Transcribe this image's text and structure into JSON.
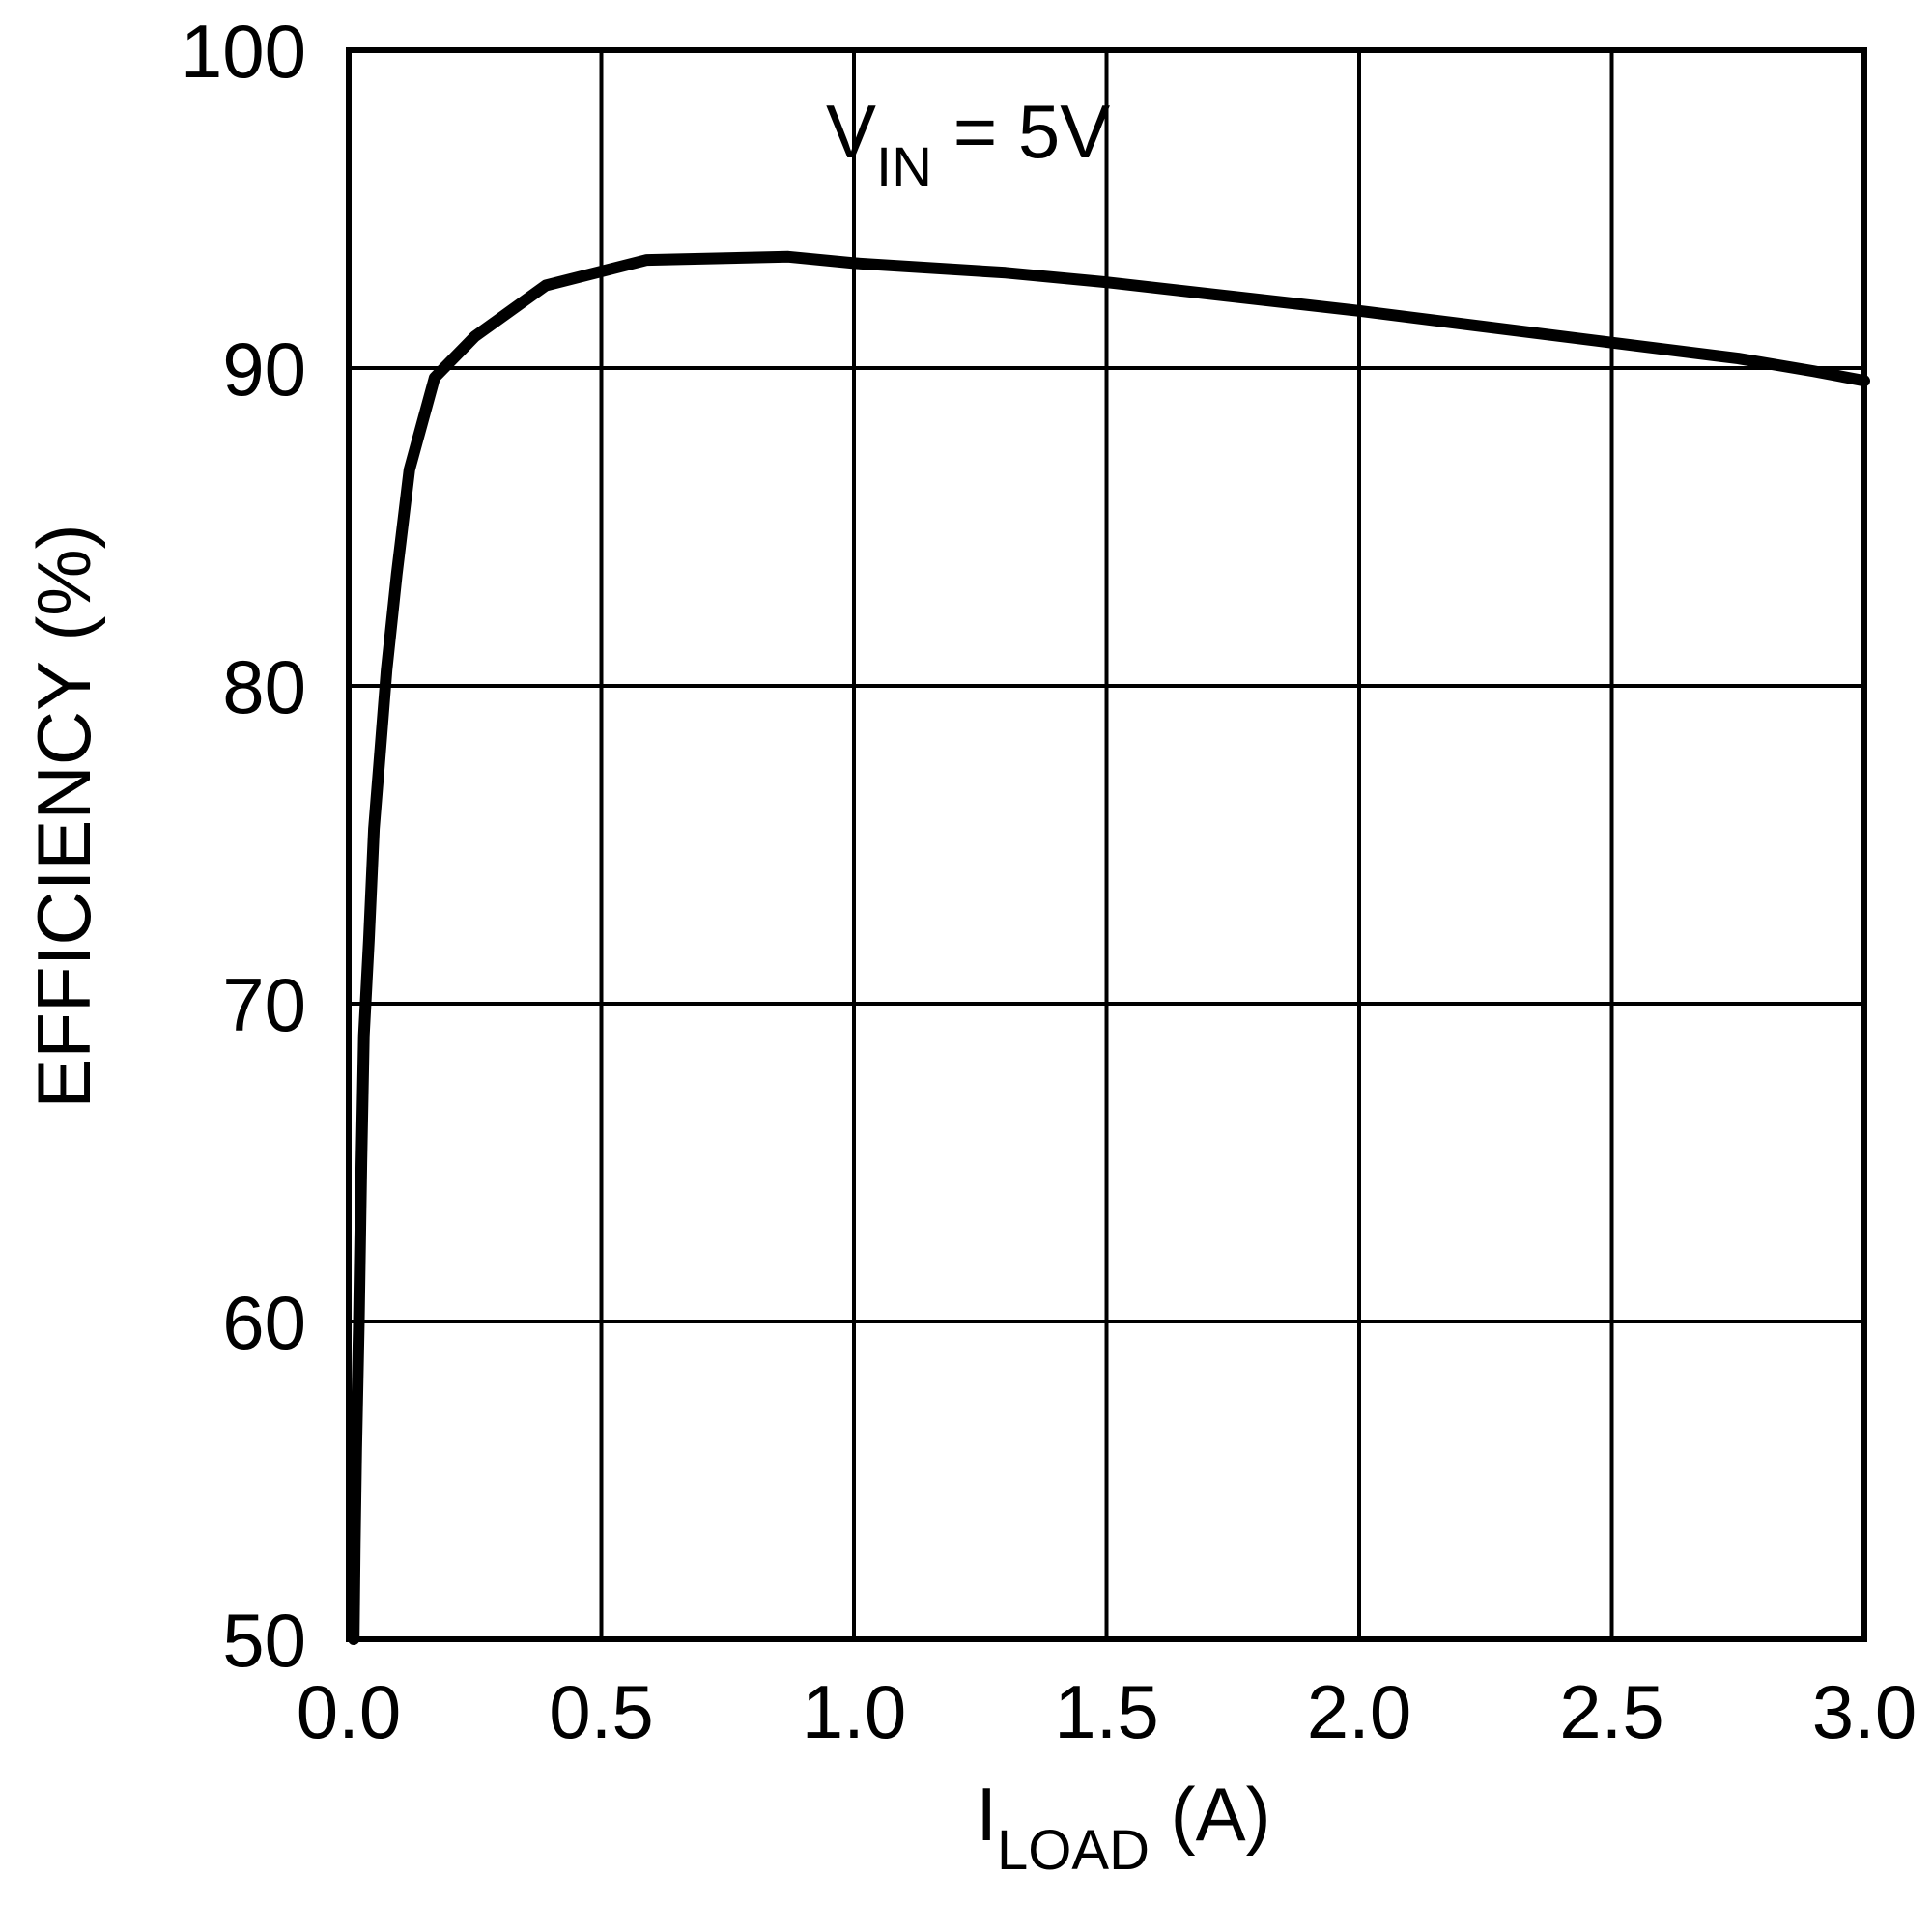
{
  "chart_data": {
    "type": "line",
    "title": "",
    "annotation": {
      "main": "V",
      "sub": "IN",
      "rest": " = 5V"
    },
    "xlabel": {
      "main": "I",
      "sub": "LOAD",
      "rest": " (A)"
    },
    "ylabel": "EFFICIENCY (%)",
    "xlim": [
      0,
      3
    ],
    "ylim": [
      50,
      100
    ],
    "x_ticks": [
      0,
      0.5,
      1,
      1.5,
      2,
      2.5,
      3
    ],
    "x_tick_labels": [
      "0.0",
      "0.5",
      "1.0",
      "1.5",
      "2.0",
      "2.5",
      "3.0"
    ],
    "y_ticks": [
      50,
      60,
      70,
      80,
      90,
      100
    ],
    "y_tick_labels": [
      "50",
      "60",
      "70",
      "80",
      "90",
      "100"
    ],
    "grid": true,
    "series": [
      {
        "name": "VIN = 5V",
        "x": [
          0.01,
          0.012,
          0.015,
          0.02,
          0.025,
          0.03,
          0.04,
          0.05,
          0.06,
          0.075,
          0.095,
          0.12,
          0.17,
          0.25,
          0.39,
          0.59,
          0.87,
          1.0,
          1.3,
          1.5,
          2.0,
          2.5,
          2.75,
          2.9,
          3.0
        ],
        "y": [
          50,
          53,
          56,
          60,
          65,
          69,
          72,
          75.5,
          77.5,
          80.5,
          83.5,
          86.8,
          89.7,
          91.0,
          92.6,
          93.4,
          93.5,
          93.3,
          93.0,
          92.7,
          91.8,
          90.8,
          90.3,
          89.9,
          89.6
        ]
      }
    ]
  }
}
